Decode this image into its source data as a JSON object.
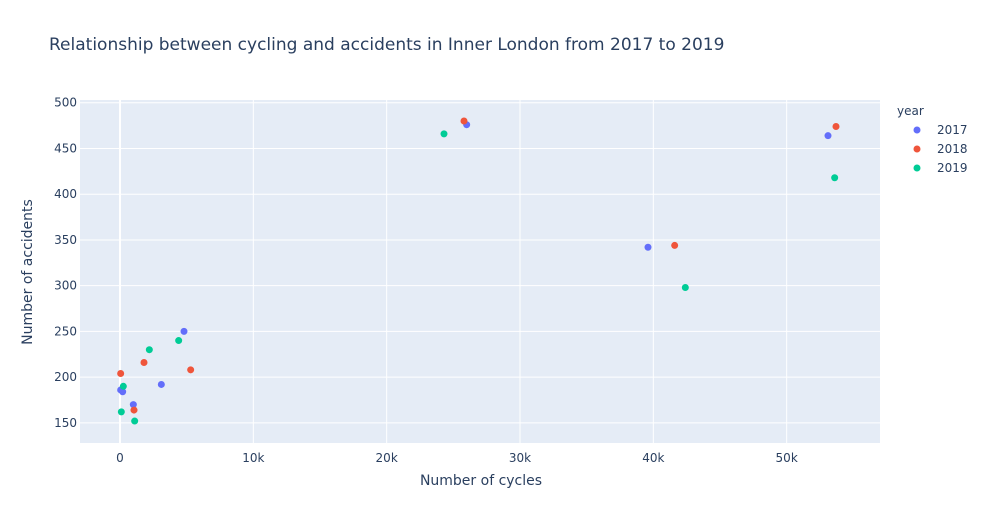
{
  "chart_data": {
    "type": "scatter",
    "title": "Relationship between cycling and accidents in Inner London from 2017 to 2019",
    "xlabel": "Number of cycles",
    "ylabel": "Number of accidents",
    "xlim": [
      -3000,
      57000
    ],
    "ylim": [
      128,
      503
    ],
    "x_ticks": [
      0,
      10000,
      20000,
      30000,
      40000,
      50000
    ],
    "x_tick_labels": [
      "0",
      "10k",
      "20k",
      "30k",
      "40k",
      "50k"
    ],
    "y_ticks": [
      150,
      200,
      250,
      300,
      350,
      400,
      450,
      500
    ],
    "y_tick_labels": [
      "150",
      "200",
      "250",
      "300",
      "350",
      "400",
      "450",
      "500"
    ],
    "grid": true,
    "legend": {
      "title": "year",
      "placement": "right"
    },
    "series": [
      {
        "name": "2017",
        "color": "#636efa",
        "points": [
          {
            "x": 50,
            "y": 186
          },
          {
            "x": 200,
            "y": 184
          },
          {
            "x": 1000,
            "y": 170
          },
          {
            "x": 3100,
            "y": 192
          },
          {
            "x": 4800,
            "y": 250
          },
          {
            "x": 26000,
            "y": 476
          },
          {
            "x": 39600,
            "y": 342
          },
          {
            "x": 53100,
            "y": 464
          }
        ]
      },
      {
        "name": "2018",
        "color": "#EF553B",
        "points": [
          {
            "x": 50,
            "y": 204
          },
          {
            "x": 1050,
            "y": 164
          },
          {
            "x": 1800,
            "y": 216
          },
          {
            "x": 5300,
            "y": 208
          },
          {
            "x": 25800,
            "y": 480
          },
          {
            "x": 41600,
            "y": 344
          },
          {
            "x": 53700,
            "y": 474
          }
        ]
      },
      {
        "name": "2019",
        "color": "#00cc96",
        "points": [
          {
            "x": 100,
            "y": 162
          },
          {
            "x": 250,
            "y": 190
          },
          {
            "x": 1100,
            "y": 152
          },
          {
            "x": 2200,
            "y": 230
          },
          {
            "x": 4400,
            "y": 240
          },
          {
            "x": 24300,
            "y": 466
          },
          {
            "x": 42400,
            "y": 298
          },
          {
            "x": 53600,
            "y": 418
          }
        ]
      }
    ]
  }
}
